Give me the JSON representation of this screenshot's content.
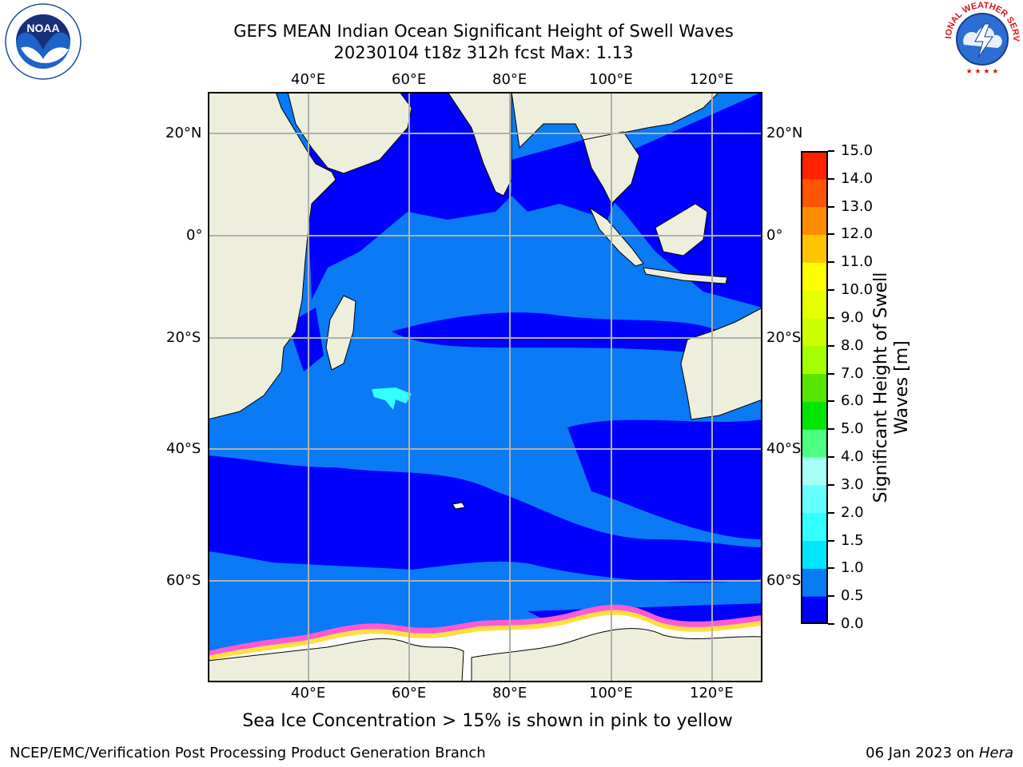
{
  "title": {
    "line1": "GEFS MEAN Indian Ocean Significant Height of Swell Waves",
    "line2": "20230104 t18z 312h fcst   Max: 1.13"
  },
  "map": {
    "lon_labels": [
      "40°E",
      "60°E",
      "80°E",
      "100°E",
      "120°E"
    ],
    "lat_labels": [
      "20°N",
      "0°",
      "20°S",
      "40°S",
      "60°S"
    ],
    "colors": {
      "land": "#eeeedd",
      "ocean_low": "#0000ff",
      "ocean_mid": "#0a7af5",
      "swell_high": "#33ffff",
      "ice": "#ffffff",
      "ice_edge_pink": "#ff5ad2",
      "ice_edge_yellow": "#ffe040",
      "grid": "#b0b0b0"
    }
  },
  "colorbar": {
    "title_line1": "Significant Height of Swell",
    "title_line2": "Waves [m]",
    "tick_labels": [
      "0.0",
      "0.5",
      "1.0",
      "1.5",
      "2.0",
      "3.0",
      "4.0",
      "5.0",
      "6.0",
      "7.0",
      "8.0",
      "9.0",
      "10.0",
      "11.0",
      "12.0",
      "13.0",
      "14.0",
      "15.0"
    ],
    "colors": [
      "#0000ff",
      "#0a7af5",
      "#00e6ff",
      "#33ffff",
      "#66ffff",
      "#a6fff6",
      "#4dff80",
      "#00e600",
      "#57e600",
      "#a6ff00",
      "#ccff00",
      "#e6ff00",
      "#ffff00",
      "#ffc400",
      "#ff8c00",
      "#ff5500",
      "#ff2200",
      "#ff0000"
    ]
  },
  "note": "Sea Ice Concentration > 15% is shown in pink to yellow",
  "footer": {
    "left": "NCEP/EMC/Verification Post Processing Product Generation Branch",
    "right_prefix": "06 Jan 2023 on ",
    "right_machine": "Hera"
  },
  "logos": {
    "noaa_text": "NOAA",
    "nws_text": "NATIONAL WEATHER SERVICE"
  }
}
